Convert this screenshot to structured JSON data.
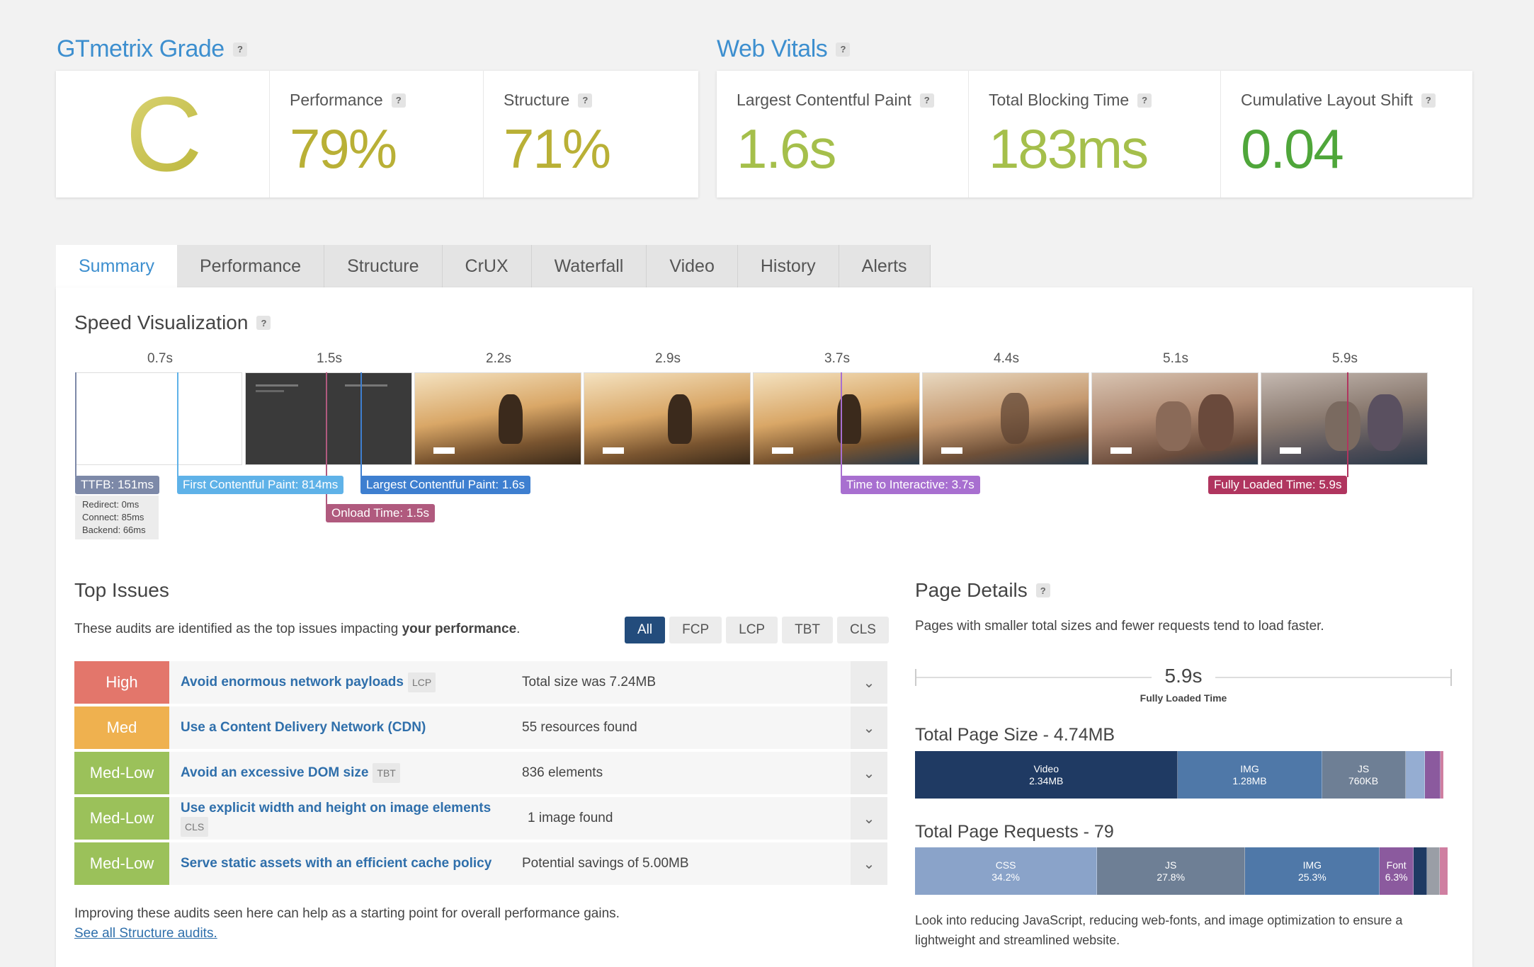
{
  "grade": {
    "title": "GTmetrix Grade",
    "letter": "C",
    "performance_label": "Performance",
    "performance_value": "79%",
    "structure_label": "Structure",
    "structure_value": "71%"
  },
  "vitals": {
    "title": "Web Vitals",
    "lcp_label": "Largest Contentful Paint",
    "lcp_value": "1.6s",
    "tbt_label": "Total Blocking Time",
    "tbt_value": "183ms",
    "cls_label": "Cumulative Layout Shift",
    "cls_value": "0.04"
  },
  "help_glyph": "?",
  "tabs": [
    "Summary",
    "Performance",
    "Structure",
    "CrUX",
    "Waterfall",
    "Video",
    "History",
    "Alerts"
  ],
  "speed": {
    "title": "Speed Visualization",
    "ticks": [
      "0.7s",
      "1.5s",
      "2.2s",
      "2.9s",
      "3.7s",
      "4.4s",
      "5.1s",
      "5.9s"
    ],
    "ttfb": "TTFB: 151ms",
    "ttfb_details": [
      "Redirect: 0ms",
      "Connect: 85ms",
      "Backend: 66ms"
    ],
    "fcp": "First Contentful Paint: 814ms",
    "onload": "Onload Time: 1.5s",
    "lcp": "Largest Contentful Paint: 1.6s",
    "tti": "Time to Interactive: 3.7s",
    "fully_loaded": "Fully Loaded Time: 5.9s"
  },
  "issues": {
    "title": "Top Issues",
    "intro_prefix": "These audits are identified as the top issues impacting ",
    "intro_bold": "your performance",
    "intro_suffix": ".",
    "filters": [
      "All",
      "FCP",
      "LCP",
      "TBT",
      "CLS"
    ],
    "rows": [
      {
        "severity": "High",
        "title": "Avoid enormous network payloads",
        "tag": "LCP",
        "detail": "Total size was 7.24MB",
        "color": "#e3766b"
      },
      {
        "severity": "Med",
        "title": "Use a Content Delivery Network (CDN)",
        "tag": "",
        "detail": "55 resources found",
        "color": "#efb14f"
      },
      {
        "severity": "Med-Low",
        "title": "Avoid an excessive DOM size",
        "tag": "TBT",
        "detail": "836 elements",
        "color": "#9bc15a"
      },
      {
        "severity": "Med-Low",
        "title": "Use explicit width and height on image elements",
        "tag": "CLS",
        "detail": "1 image found",
        "color": "#9bc15a"
      },
      {
        "severity": "Med-Low",
        "title": "Serve static assets with an efficient cache policy",
        "tag": "",
        "detail": "Potential savings of 5.00MB",
        "color": "#9bc15a"
      }
    ],
    "chevron": "⌄",
    "footer": "Improving these audits seen here can help as a starting point for overall performance gains.",
    "link": "See all Structure audits."
  },
  "details": {
    "title": "Page Details",
    "intro": "Pages with smaller total sizes and fewer requests tend to load faster.",
    "fully_loaded_value": "5.9s",
    "fully_loaded_label": "Fully Loaded Time",
    "size_title": "Total Page Size - 4.74MB",
    "size_segments": [
      {
        "label": "Video",
        "value": "2.34MB",
        "share": 0.494,
        "color": "#1f3a63"
      },
      {
        "label": "IMG",
        "value": "1.28MB",
        "share": 0.27,
        "color": "#4f78a8"
      },
      {
        "label": "JS",
        "value": "760KB",
        "share": 0.157,
        "color": "#6e7f95"
      },
      {
        "label": "",
        "value": "",
        "share": 0.036,
        "color": "#95add2"
      },
      {
        "label": "",
        "value": "",
        "share": 0.03,
        "color": "#8b5a9e"
      },
      {
        "label": "",
        "value": "",
        "share": 0.005,
        "color": "#cf7fa1"
      }
    ],
    "req_title": "Total Page Requests - 79",
    "req_segments": [
      {
        "label": "CSS",
        "value": "34.2%",
        "share": 0.342,
        "color": "#8aa3c9"
      },
      {
        "label": "JS",
        "value": "27.8%",
        "share": 0.278,
        "color": "#6e7f95"
      },
      {
        "label": "IMG",
        "value": "25.3%",
        "share": 0.253,
        "color": "#4f78a8"
      },
      {
        "label": "Font",
        "value": "6.3%",
        "share": 0.063,
        "color": "#8b5a9e"
      },
      {
        "label": "",
        "value": "",
        "share": 0.025,
        "color": "#1f3a63"
      },
      {
        "label": "",
        "value": "",
        "share": 0.025,
        "color": "#9a9ea6"
      },
      {
        "label": "",
        "value": "",
        "share": 0.014,
        "color": "#cf7fa1"
      }
    ],
    "outro": "Look into reducing JavaScript, reducing web-fonts, and image optimization to ensure a lightweight and streamlined website."
  }
}
